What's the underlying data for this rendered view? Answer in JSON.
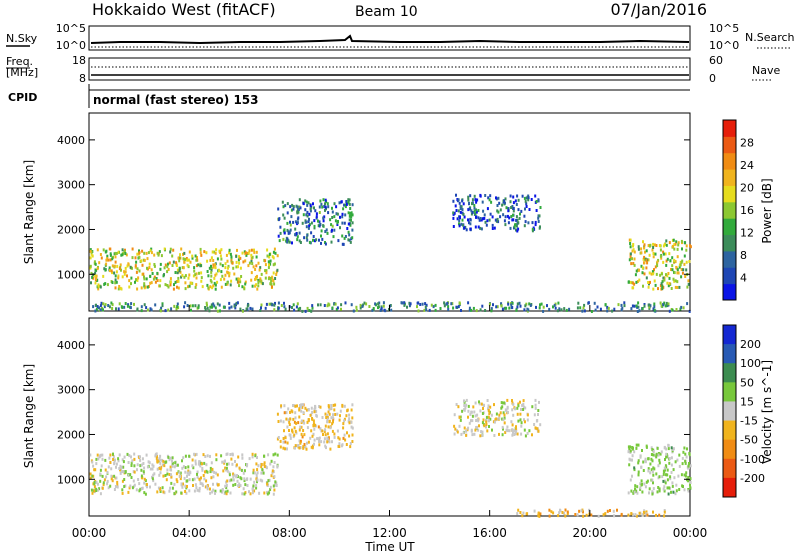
{
  "header": {
    "station": "Hokkaido West (fitACF)",
    "beam": "Beam 10",
    "date": "07/Jan/2016"
  },
  "strip": {
    "nsky_label": "N.Sky",
    "nsearch_label": "N.Search",
    "noise_ticks_left": [
      "10^5",
      "10^0"
    ],
    "noise_ticks_right": [
      "10^5",
      "10^0"
    ],
    "freq_label_1": "Freq.",
    "freq_label_2": "[MHz]",
    "freq_ticks": [
      "18",
      "8"
    ],
    "nave_label": "Nave",
    "nave_ticks": [
      "60",
      "0"
    ],
    "cpid_label": "CPID",
    "mode_text": "normal (fast stereo) 153"
  },
  "xaxis": {
    "ticks": [
      "00:00",
      "04:00",
      "08:00",
      "12:00",
      "16:00",
      "20:00",
      "00:00"
    ],
    "label": "Time UT"
  },
  "chart_data": [
    {
      "type": "heatmap",
      "panel": "power",
      "ylabel": "Slant Range [km]",
      "y_ticks": [
        "1000",
        "2000",
        "3000",
        "4000"
      ],
      "ylim": [
        180,
        4600
      ],
      "xlim_hours": [
        0,
        24
      ],
      "colorbar": {
        "label": "Power [dB]",
        "ticks": [
          "4",
          "8",
          "12",
          "16",
          "20",
          "24",
          "28"
        ],
        "colors": [
          "#0a14e6",
          "#1e46b4",
          "#2d64a0",
          "#3c8c5a",
          "#32aa3c",
          "#8cc832",
          "#e6dc1e",
          "#f0b41e",
          "#f08c14",
          "#eb5a14",
          "#e61e0a"
        ]
      },
      "regions": [
        {
          "hour_start": 0,
          "hour_end": 7.5,
          "range_start_km": 700,
          "range_end_km": 1600,
          "value": 18
        },
        {
          "hour_start": 7.5,
          "hour_end": 10.5,
          "range_start_km": 1700,
          "range_end_km": 2700,
          "value": 8
        },
        {
          "hour_start": 14.5,
          "hour_end": 18,
          "range_start_km": 2000,
          "range_end_km": 2800,
          "value": 6
        },
        {
          "hour_start": 21.5,
          "hour_end": 24,
          "range_start_km": 700,
          "range_end_km": 1800,
          "value": 18
        },
        {
          "hour_start": 0,
          "hour_end": 24,
          "range_start_km": 200,
          "range_end_km": 400,
          "value": 10
        }
      ]
    },
    {
      "type": "heatmap",
      "panel": "velocity",
      "ylabel": "Slant Range [km]",
      "y_ticks": [
        "1000",
        "2000",
        "3000",
        "4000"
      ],
      "ylim": [
        180,
        4600
      ],
      "xlim_hours": [
        0,
        24
      ],
      "colorbar": {
        "label": "Velocity [m s^-1]",
        "ticks": [
          "200",
          "100",
          "50",
          "15",
          "-15",
          "-50",
          "-100",
          "-200"
        ],
        "colors": [
          "#1428d2",
          "#285ab4",
          "#3c8c50",
          "#78c83c",
          "#c8c8c8",
          "#f0b41e",
          "#f08c14",
          "#eb5a14",
          "#e61e0a"
        ]
      },
      "regions": [
        {
          "hour_start": 0,
          "hour_end": 7.5,
          "range_start_km": 700,
          "range_end_km": 1600,
          "value": 0
        },
        {
          "hour_start": 7.5,
          "hour_end": 10.5,
          "range_start_km": 1700,
          "range_end_km": 2700,
          "value": -30
        },
        {
          "hour_start": 14.5,
          "hour_end": 18,
          "range_start_km": 2000,
          "range_end_km": 2800,
          "value": 0
        },
        {
          "hour_start": 21.5,
          "hour_end": 24,
          "range_start_km": 700,
          "range_end_km": 1800,
          "value": 30
        },
        {
          "hour_start": 17,
          "hour_end": 23,
          "range_start_km": 200,
          "range_end_km": 350,
          "value": -40
        }
      ]
    }
  ]
}
